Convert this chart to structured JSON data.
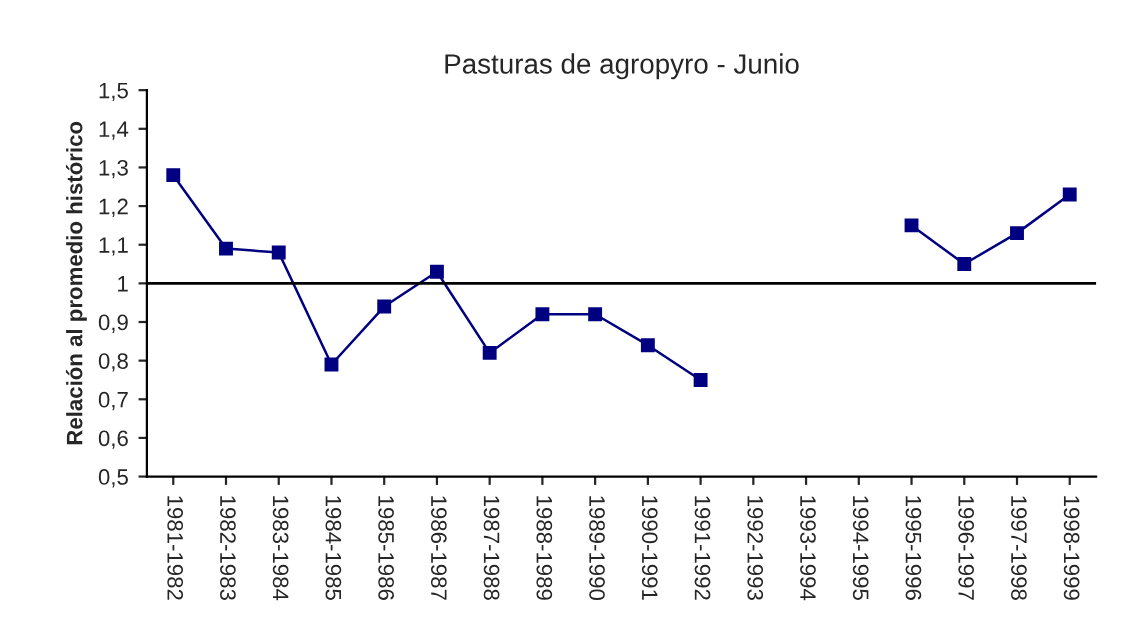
{
  "chart_data": {
    "type": "line",
    "title": "Pasturas de agropyro - Junio",
    "ylabel": "Relación al promedio histórico",
    "categories": [
      "1981-1982",
      "1982-1983",
      "1983-1984",
      "1984-1985",
      "1985-1986",
      "1986-1987",
      "1987-1988",
      "1988-1989",
      "1989-1990",
      "1990-1991",
      "1991-1992",
      "1992-1993",
      "1993-1994",
      "1994-1995",
      "1995-1996",
      "1996-1997",
      "1997-1998",
      "1998-1999"
    ],
    "series": [
      {
        "color": "#000080",
        "values": [
          1.28,
          1.09,
          1.08,
          0.79,
          0.94,
          1.03,
          0.82,
          0.92,
          0.92,
          0.84,
          0.75,
          null,
          null,
          null,
          1.15,
          1.05,
          1.13,
          1.23
        ]
      }
    ],
    "ylim": [
      0.5,
      1.5
    ],
    "yticks": [
      {
        "value": 0.5,
        "label": "0,5"
      },
      {
        "value": 0.6,
        "label": "0,6"
      },
      {
        "value": 0.7,
        "label": "0,7"
      },
      {
        "value": 0.8,
        "label": "0,8"
      },
      {
        "value": 0.9,
        "label": "0,9"
      },
      {
        "value": 1,
        "label": "1"
      },
      {
        "value": 1.1,
        "label": "1,1"
      },
      {
        "value": 1.2,
        "label": "1,2"
      },
      {
        "value": 1.3,
        "label": "1,3"
      },
      {
        "value": 1.4,
        "label": "1,4"
      },
      {
        "value": 1.5,
        "label": "1,5"
      }
    ],
    "ref_lines": [
      {
        "axis": "y",
        "value": 1,
        "color": "#000000"
      }
    ],
    "marker": "square",
    "line_style": "solid",
    "grid": false,
    "legend": false
  }
}
